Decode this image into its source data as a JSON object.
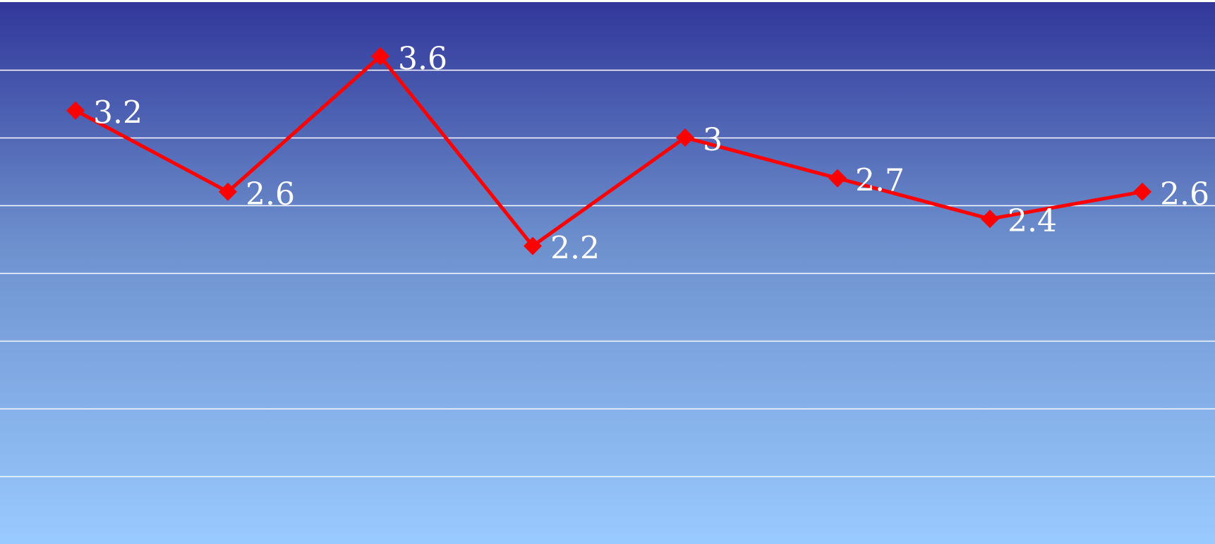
{
  "chart_data": {
    "type": "line",
    "title": "",
    "xlabel": "",
    "ylabel": "",
    "ylim": [
      0,
      4
    ],
    "grid": true,
    "legend": "none",
    "categories": [
      "",
      "",
      "",
      "",
      "",
      "",
      "",
      ""
    ],
    "series": [
      {
        "color": "#ff0000",
        "marker": "diamond",
        "values": [
          3.2,
          2.6,
          3.6,
          2.2,
          3.0,
          2.7,
          2.4,
          2.6
        ],
        "labels": [
          "3.2",
          "2.6",
          "3.6",
          "2.2",
          "3",
          "2.7",
          "2.4",
          "2.6"
        ]
      }
    ]
  },
  "colors": {
    "background_top": "#31379a",
    "background_mid": "#6e91ce",
    "background_bottom": "#99caff",
    "gridline": "#ffffff",
    "label_text": "#ffffff"
  }
}
